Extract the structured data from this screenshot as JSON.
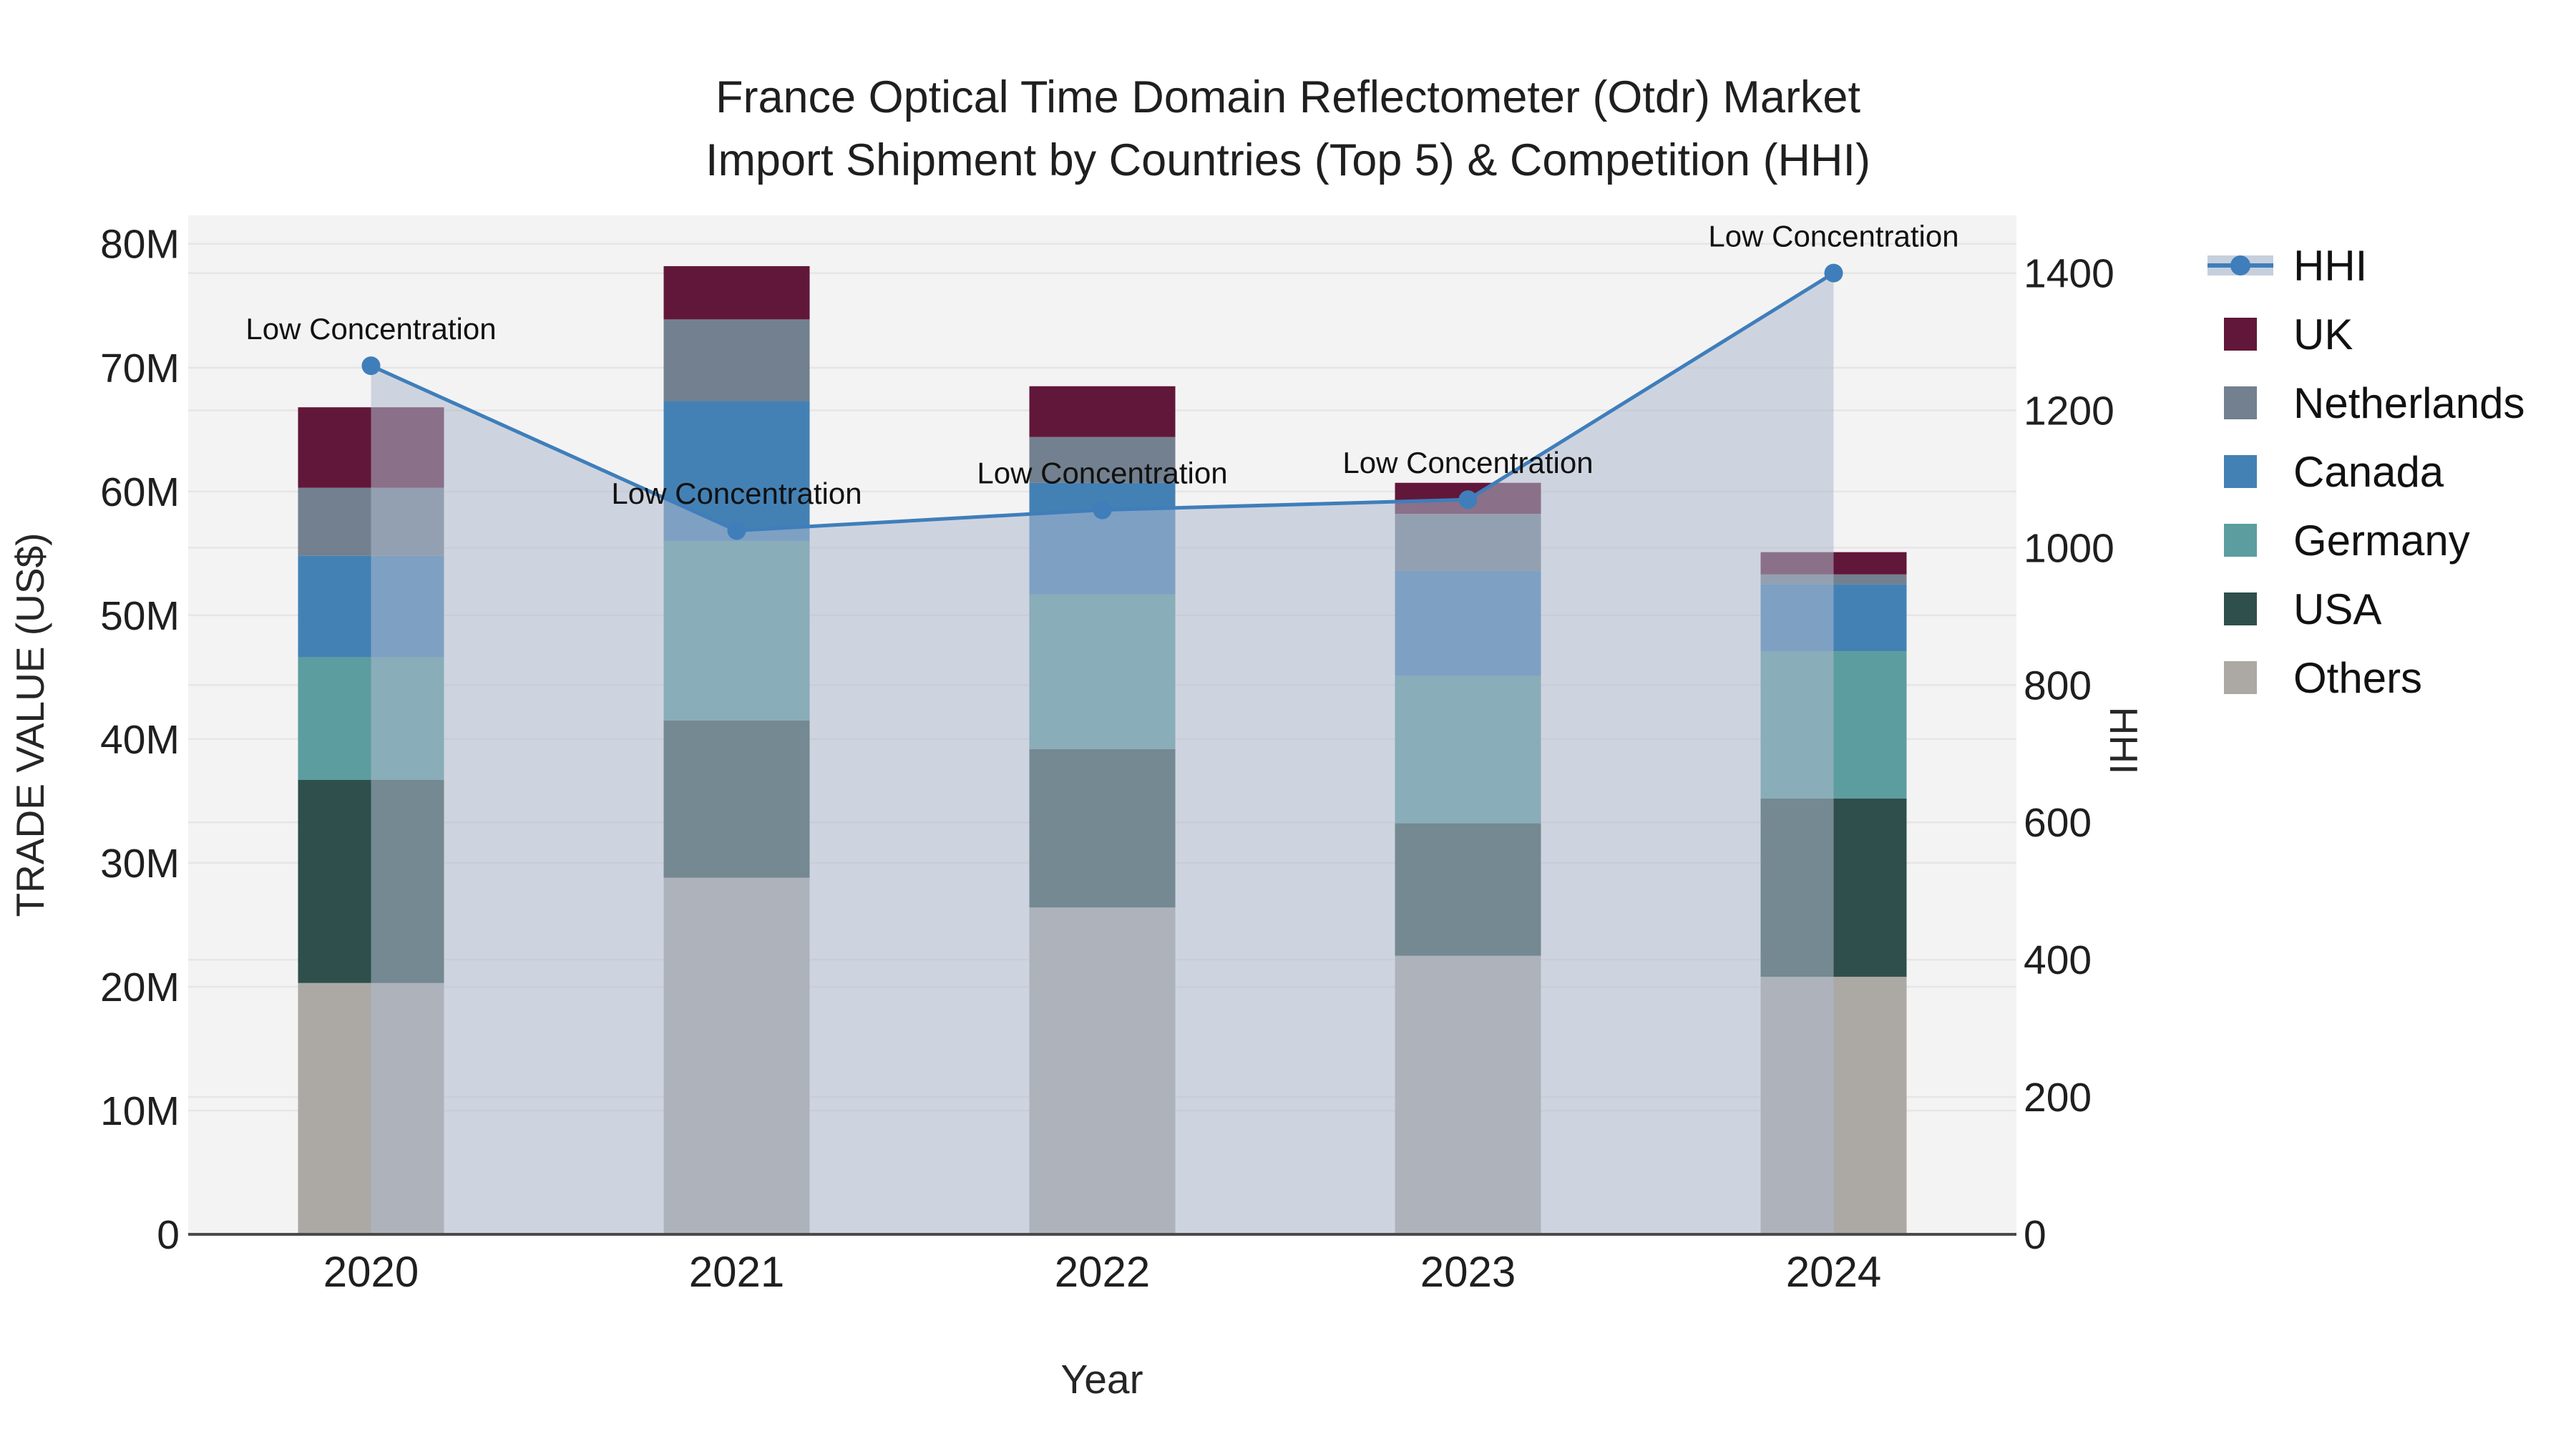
{
  "title": {
    "line1": "France Optical Time Domain Reflectometer (Otdr) Market",
    "line2": "Import Shipment by Countries (Top 5) & Competition (HHI)"
  },
  "axes": {
    "x": {
      "title": "Year",
      "categories": [
        "2020",
        "2021",
        "2022",
        "2023",
        "2024"
      ]
    },
    "y_left": {
      "title": "TRADE VALUE (US$)",
      "tick_labels": [
        "0",
        "10M",
        "20M",
        "30M",
        "40M",
        "50M",
        "60M",
        "70M",
        "80M"
      ],
      "tick_values": [
        0,
        10,
        20,
        30,
        40,
        50,
        60,
        70,
        80
      ],
      "range": [
        0,
        82.3
      ]
    },
    "y_right": {
      "title": "HHI",
      "tick_labels": [
        "0",
        "200",
        "400",
        "600",
        "800",
        "1000",
        "1200",
        "1400"
      ],
      "tick_values": [
        0,
        200,
        400,
        600,
        800,
        1000,
        1200,
        1400
      ],
      "range": [
        0,
        1484
      ]
    }
  },
  "annotation_label": "Low Concentration",
  "legend": {
    "items": [
      {
        "label": "HHI",
        "type": "line",
        "color": "#3F7EBB"
      },
      {
        "label": "UK",
        "type": "square",
        "color": "#611739"
      },
      {
        "label": "Netherlands",
        "type": "square",
        "color": "#72808F"
      },
      {
        "label": "Canada",
        "type": "square",
        "color": "#4381B5"
      },
      {
        "label": "Germany",
        "type": "square",
        "color": "#5C9DA0"
      },
      {
        "label": "USA",
        "type": "square",
        "color": "#2E4F4B"
      },
      {
        "label": "Others",
        "type": "square",
        "color": "#ACA9A5"
      }
    ]
  },
  "chart_data": {
    "type": "stacked-bar+line",
    "unit_left": "million US$",
    "unit_right": "HHI index",
    "categories": [
      "2020",
      "2021",
      "2022",
      "2023",
      "2024"
    ],
    "stack_order_bottom_to_top": [
      "Others",
      "USA",
      "Germany",
      "Canada",
      "Netherlands",
      "UK"
    ],
    "series": [
      {
        "name": "Others",
        "color": "#ACA9A5",
        "values": [
          20.3,
          28.8,
          26.4,
          22.5,
          20.8
        ]
      },
      {
        "name": "USA",
        "color": "#2E4F4B",
        "values": [
          16.4,
          12.7,
          12.8,
          10.7,
          14.4
        ]
      },
      {
        "name": "Germany",
        "color": "#5C9DA0",
        "values": [
          9.9,
          14.5,
          12.5,
          11.9,
          11.9
        ]
      },
      {
        "name": "Canada",
        "color": "#4381B5",
        "values": [
          8.2,
          11.3,
          9.0,
          8.5,
          5.4
        ]
      },
      {
        "name": "Netherlands",
        "color": "#72808F",
        "values": [
          5.5,
          6.6,
          3.7,
          4.6,
          0.8
        ]
      },
      {
        "name": "UK",
        "color": "#611739",
        "values": [
          6.5,
          4.3,
          4.1,
          2.5,
          1.8
        ]
      }
    ],
    "bar_totals": [
      66.8,
      78.2,
      68.5,
      60.7,
      55.1
    ],
    "hhi_line": {
      "name": "HHI",
      "axis": "right",
      "color": "#3F7EBB",
      "fill_color": "rgba(175,186,205,0.55)",
      "values": [
        1265,
        1025,
        1055,
        1070,
        1400
      ],
      "point_annotations": [
        "Low Concentration",
        "Low Concentration",
        "Low Concentration",
        "Low Concentration",
        "Low Concentration"
      ]
    },
    "plot_bg": "#F4F3F3",
    "grid_color": "#E7E5E5",
    "axis_line_color": "#4A4A4A",
    "text_color": "#1F1F1F"
  }
}
